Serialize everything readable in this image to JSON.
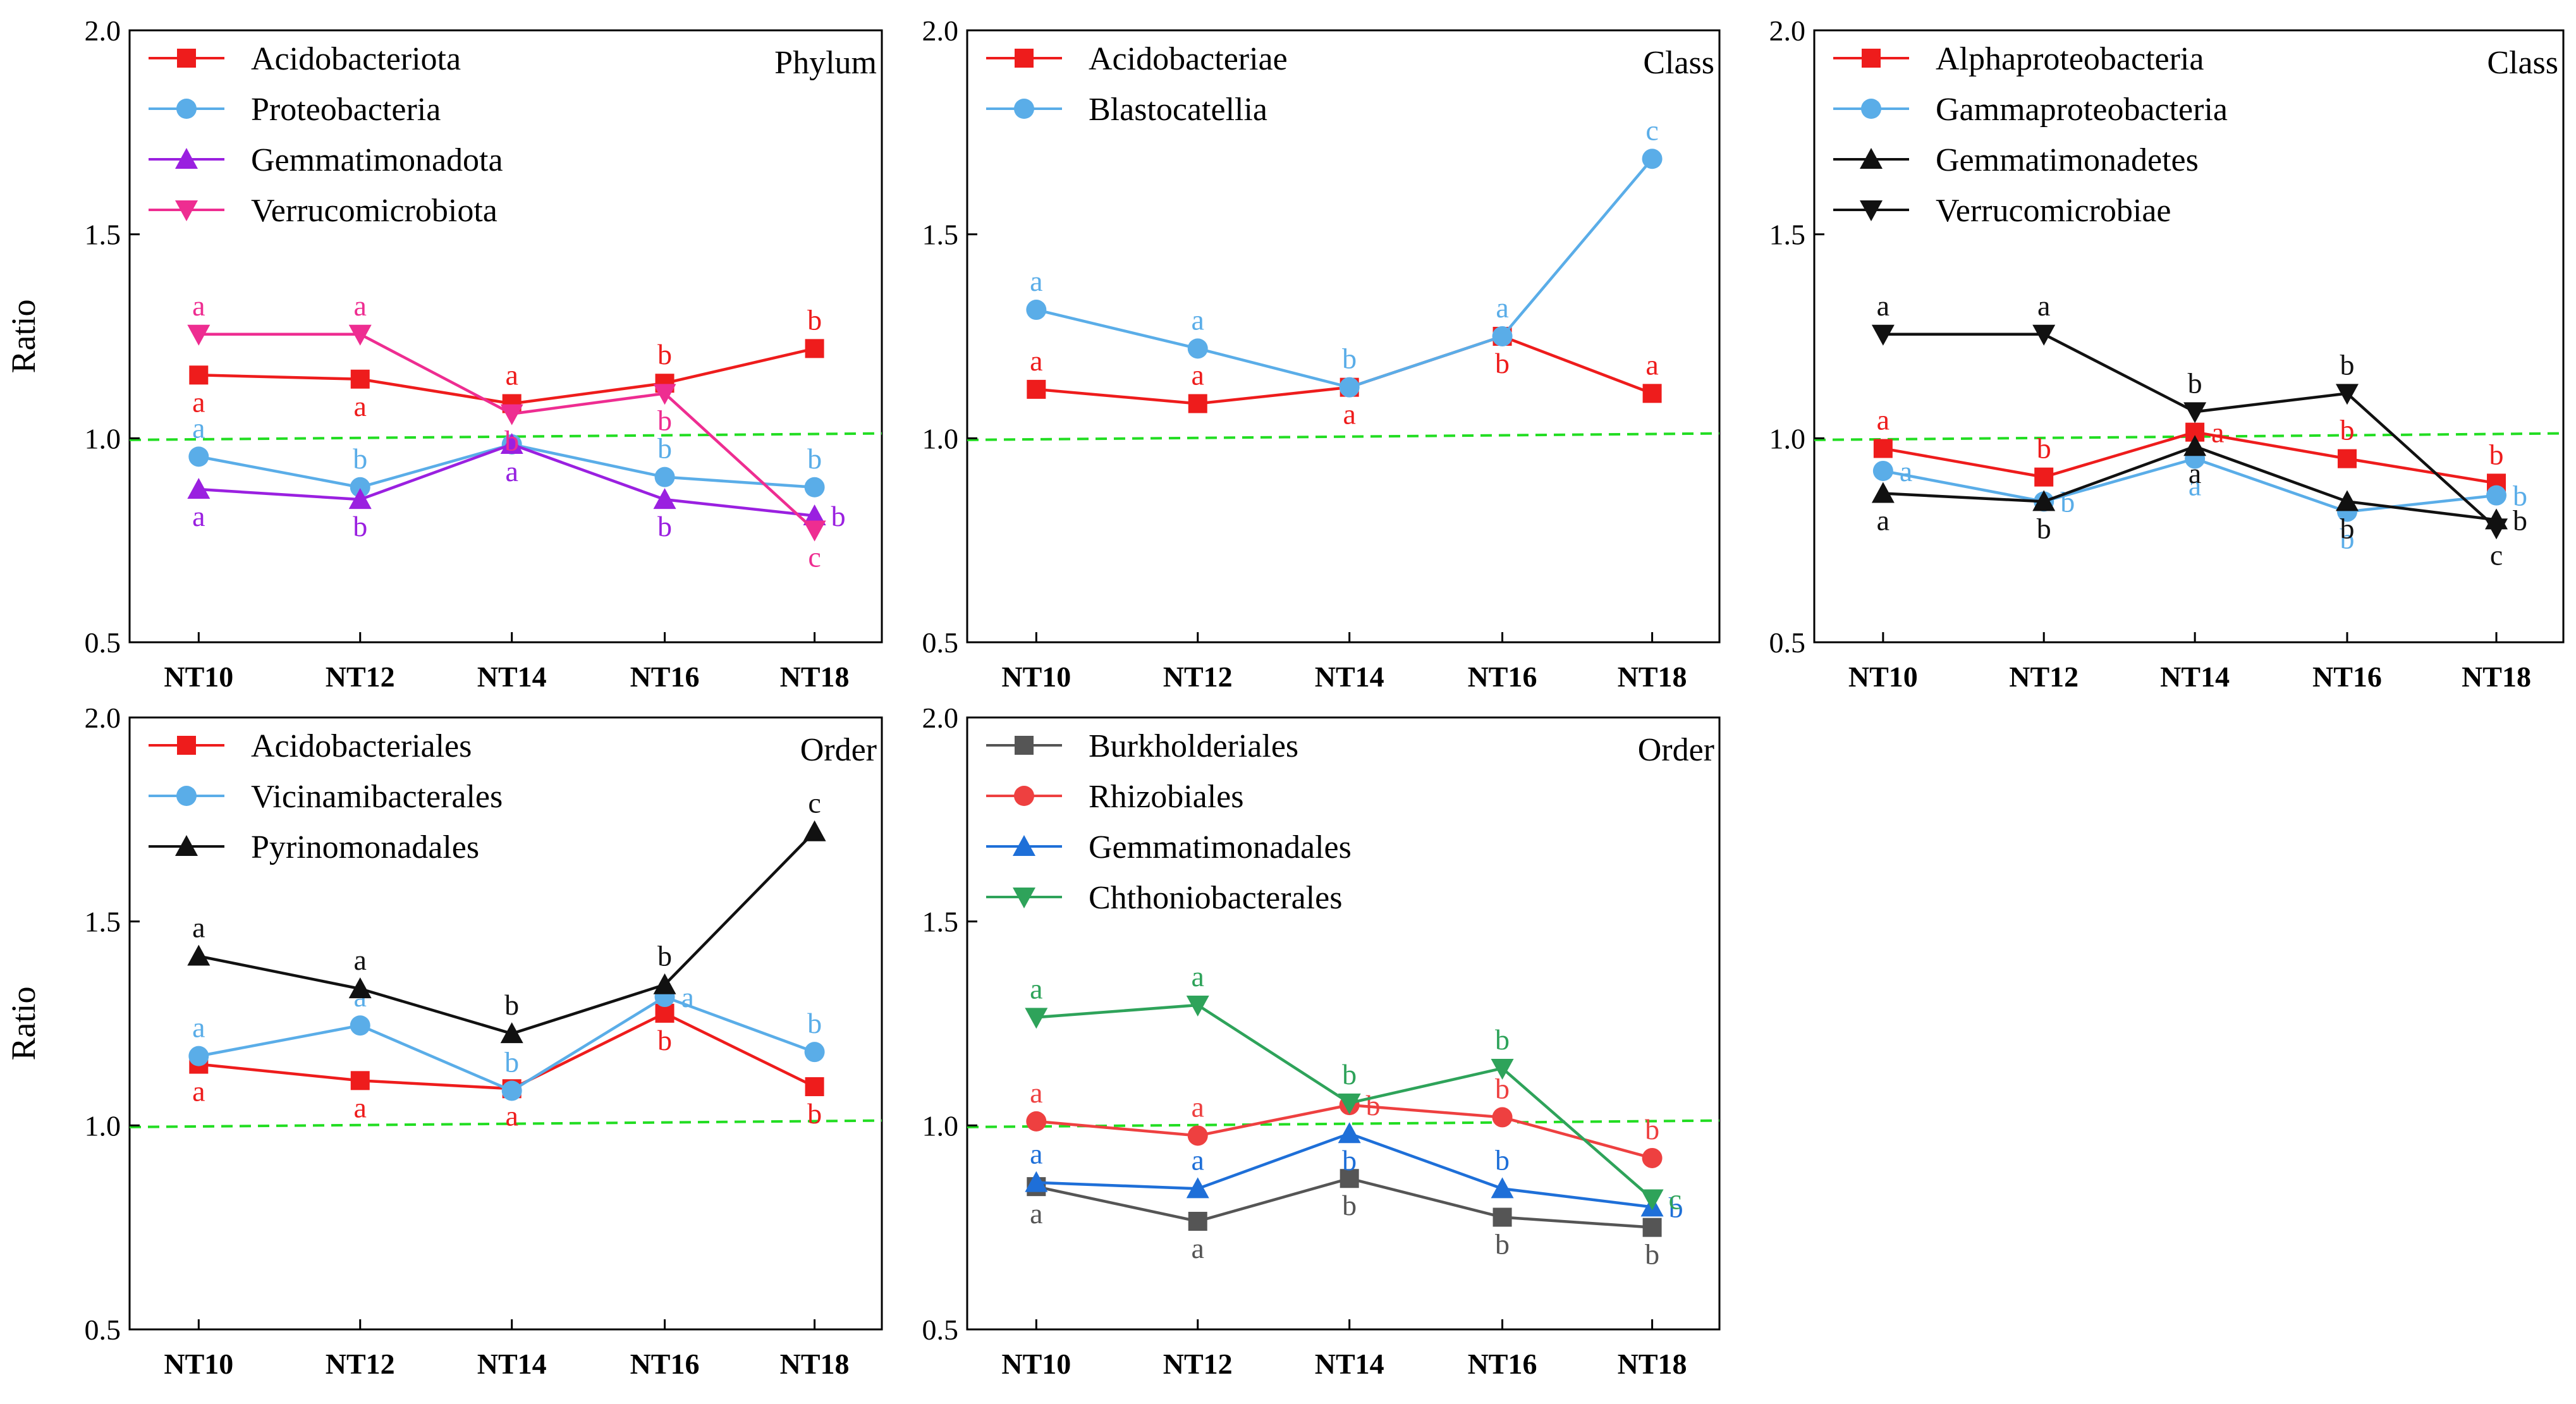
{
  "figure": {
    "x_tick_labels": [
      "NT10",
      "NT12",
      "NT14",
      "NT16",
      "NT18"
    ]
  },
  "chart_data": [
    {
      "type": "line",
      "title": "Phylum",
      "ylabel": "Ratio",
      "xlabel": "",
      "ylim": [
        0.5,
        2.0
      ],
      "yticks": [
        "0.5",
        "1.0",
        "1.5",
        "2.0"
      ],
      "categories": [
        "NT10",
        "NT12",
        "NT14",
        "NT16",
        "NT18"
      ],
      "series": [
        {
          "name": "Acidobacteriota",
          "color": "#ee1c1c",
          "marker": "square",
          "values": [
            1.155,
            1.145,
            1.085,
            1.135,
            1.22
          ],
          "letters": [
            "a",
            "a",
            "a",
            "b",
            "b"
          ],
          "letter_pos": [
            "below",
            "below",
            "above",
            "above",
            "above"
          ]
        },
        {
          "name": "Proteobacteria",
          "color": "#5aade8",
          "marker": "circle",
          "values": [
            0.955,
            0.88,
            0.985,
            0.905,
            0.88
          ],
          "letters": [
            "a",
            "b",
            "a",
            "b",
            "b"
          ],
          "letter_pos": [
            "above",
            "above",
            "below",
            "above",
            "above"
          ]
        },
        {
          "name": "Gemmatimonadota",
          "color": "#9a20e0",
          "marker": "triangle-up",
          "values": [
            0.875,
            0.85,
            0.985,
            0.85,
            0.81
          ],
          "letters": [
            "a",
            "b",
            "a",
            "b",
            "b"
          ],
          "letter_pos": [
            "below",
            "below",
            "below",
            "below",
            "right"
          ]
        },
        {
          "name": "Verrucomicrobiota",
          "color": "#ee2d91",
          "marker": "triangle-down",
          "values": [
            1.255,
            1.255,
            1.06,
            1.11,
            0.775
          ],
          "letters": [
            "a",
            "a",
            "b",
            "b",
            "c"
          ],
          "letter_pos": [
            "above",
            "above",
            "below",
            "below",
            "below"
          ]
        }
      ]
    },
    {
      "type": "line",
      "title": "Class",
      "ylabel": "",
      "xlabel": "",
      "ylim": [
        0.5,
        2.0
      ],
      "yticks": [
        "0.5",
        "1.0",
        "1.5",
        "2.0"
      ],
      "categories": [
        "NT10",
        "NT12",
        "NT14",
        "NT16",
        "NT18"
      ],
      "series": [
        {
          "name": "Acidobacteriae",
          "color": "#ee1c1c",
          "marker": "square",
          "values": [
            1.12,
            1.085,
            1.125,
            1.25,
            1.11
          ],
          "letters": [
            "a",
            "a",
            "a",
            "b",
            "a"
          ],
          "letter_pos": [
            "above",
            "above",
            "below",
            "below",
            "above"
          ]
        },
        {
          "name": "Blastocatellia",
          "color": "#5aade8",
          "marker": "circle",
          "values": [
            1.315,
            1.22,
            1.125,
            1.25,
            1.685
          ],
          "letters": [
            "a",
            "a",
            "b",
            "a",
            "c"
          ],
          "letter_pos": [
            "above",
            "above",
            "above",
            "above",
            "above"
          ]
        }
      ]
    },
    {
      "type": "line",
      "title": "Class",
      "ylabel": "",
      "xlabel": "",
      "ylim": [
        0.5,
        2.0
      ],
      "yticks": [
        "0.5",
        "1.0",
        "1.5",
        "2.0"
      ],
      "categories": [
        "NT10",
        "NT12",
        "NT14",
        "NT16",
        "NT18"
      ],
      "series": [
        {
          "name": "Alphaproteobacteria",
          "color": "#ee1c1c",
          "marker": "square",
          "values": [
            0.975,
            0.905,
            1.015,
            0.95,
            0.89
          ],
          "letters": [
            "a",
            "b",
            "a",
            "b",
            "b"
          ],
          "letter_pos": [
            "above",
            "above",
            "right",
            "above",
            "above"
          ]
        },
        {
          "name": "Gammaproteobacteria",
          "color": "#5aade8",
          "marker": "circle",
          "values": [
            0.92,
            0.845,
            0.95,
            0.82,
            0.86
          ],
          "letters": [
            "a",
            "b",
            "a",
            "b",
            "b"
          ],
          "letter_pos": [
            "right",
            "right",
            "below",
            "below",
            "right"
          ]
        },
        {
          "name": "Gemmatimonadetes",
          "color": "#111111",
          "marker": "triangle-up",
          "values": [
            0.865,
            0.845,
            0.98,
            0.845,
            0.8
          ],
          "letters": [
            "a",
            "b",
            "a",
            "b",
            "b"
          ],
          "letter_pos": [
            "below",
            "below",
            "below",
            "below",
            "right"
          ]
        },
        {
          "name": "Verrucomicrobiae",
          "color": "#111111",
          "marker": "triangle-down",
          "values": [
            1.255,
            1.255,
            1.065,
            1.11,
            0.78
          ],
          "letters": [
            "a",
            "a",
            "b",
            "b",
            "c"
          ],
          "letter_pos": [
            "above",
            "above",
            "above",
            "above",
            "below"
          ]
        }
      ]
    },
    {
      "type": "line",
      "title": "Order",
      "ylabel": "Ratio",
      "xlabel": "",
      "ylim": [
        0.5,
        2.0
      ],
      "yticks": [
        "0.5",
        "1.0",
        "1.5",
        "2.0"
      ],
      "categories": [
        "NT10",
        "NT12",
        "NT14",
        "NT16",
        "NT18"
      ],
      "series": [
        {
          "name": "Acidobacteriales",
          "color": "#ee1c1c",
          "marker": "square",
          "values": [
            1.15,
            1.11,
            1.09,
            1.275,
            1.095
          ],
          "letters": [
            "a",
            "a",
            "a",
            "b",
            "b"
          ],
          "letter_pos": [
            "below",
            "below",
            "below",
            "below",
            "below"
          ]
        },
        {
          "name": "Vicinamibacterales",
          "color": "#5aade8",
          "marker": "circle",
          "values": [
            1.17,
            1.245,
            1.085,
            1.315,
            1.18
          ],
          "letters": [
            "a",
            "a",
            "b",
            "a",
            "b"
          ],
          "letter_pos": [
            "above",
            "above",
            "above",
            "right",
            "above"
          ]
        },
        {
          "name": "Pyrinomonadales",
          "color": "#111111",
          "marker": "triangle-up",
          "values": [
            1.415,
            1.335,
            1.225,
            1.345,
            1.72
          ],
          "letters": [
            "a",
            "a",
            "b",
            "b",
            "c"
          ],
          "letter_pos": [
            "above",
            "above",
            "above",
            "above",
            "above"
          ]
        }
      ]
    },
    {
      "type": "line",
      "title": "Order",
      "ylabel": "",
      "xlabel": "",
      "ylim": [
        0.5,
        2.0
      ],
      "yticks": [
        "0.5",
        "1.0",
        "1.5",
        "2.0"
      ],
      "categories": [
        "NT10",
        "NT12",
        "NT14",
        "NT16",
        "NT18"
      ],
      "series": [
        {
          "name": "Burkholderiales",
          "color": "#555555",
          "marker": "square",
          "values": [
            0.85,
            0.765,
            0.87,
            0.775,
            0.75
          ],
          "letters": [
            "a",
            "a",
            "b",
            "b",
            "b"
          ],
          "letter_pos": [
            "below",
            "below",
            "below",
            "below",
            "below"
          ]
        },
        {
          "name": "Rhizobiales",
          "color": "#ee4040",
          "marker": "circle",
          "values": [
            1.01,
            0.975,
            1.05,
            1.02,
            0.92
          ],
          "letters": [
            "a",
            "a",
            "b",
            "b",
            "b"
          ],
          "letter_pos": [
            "above",
            "above",
            "right",
            "above",
            "above"
          ]
        },
        {
          "name": "Gemmatimonadales",
          "color": "#1e6fd8",
          "marker": "triangle-up",
          "values": [
            0.86,
            0.845,
            0.98,
            0.845,
            0.8
          ],
          "letters": [
            "a",
            "a",
            "b",
            "b",
            "b"
          ],
          "letter_pos": [
            "above",
            "above",
            "below",
            "above",
            "right"
          ]
        },
        {
          "name": "Chthoniobacterales",
          "color": "#2ea35a",
          "marker": "triangle-down",
          "values": [
            1.265,
            1.295,
            1.055,
            1.14,
            0.82
          ],
          "letters": [
            "a",
            "a",
            "b",
            "b",
            "c"
          ],
          "letter_pos": [
            "above",
            "above",
            "above",
            "above",
            "right"
          ]
        }
      ]
    }
  ]
}
